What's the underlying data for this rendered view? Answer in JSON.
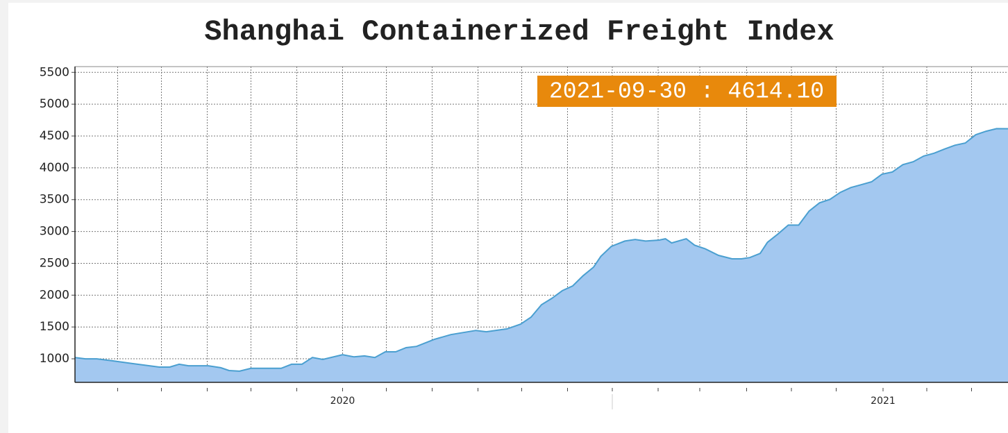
{
  "chart_data": {
    "type": "area",
    "title": "Shanghai Containerized Freight Index",
    "annotation": "2021-09-30 : 4614.10",
    "x": [
      0,
      1,
      2.1,
      3.5,
      5.5,
      8.1,
      9.1,
      10,
      10.9,
      12.8,
      14,
      14.8,
      15.8,
      16.9,
      19.8,
      20.8,
      21.8,
      22.8,
      23.8,
      25.7,
      26.8,
      27.8,
      28.8,
      29.8,
      30.8,
      31.8,
      32.8,
      34.5,
      36.1,
      38.5,
      39.5,
      41.5,
      42.8,
      43.8,
      44.8,
      45.8,
      46.8,
      47.8,
      48.8,
      49.8,
      50.5,
      51.5,
      52.8,
      53.8,
      54.8,
      56.1,
      56.7,
      57.3,
      58.7,
      59.5,
      60.5,
      61.8,
      63.1,
      64,
      64.8,
      65.8,
      66.5,
      67.5,
      68.5,
      69.5,
      70.5,
      71.5,
      72.5,
      73.5,
      74.5,
      75.5,
      76.5,
      77.5,
      78.5,
      79.5,
      80.5,
      81.5,
      82.5,
      83.5,
      84.5,
      85.5,
      86.5,
      87.5,
      88.5,
      89.6
    ],
    "values": [
      1020,
      1000,
      1000,
      970,
      925,
      870,
      870,
      915,
      890,
      890,
      860,
      815,
      805,
      850,
      850,
      915,
      915,
      1020,
      990,
      1065,
      1030,
      1045,
      1020,
      1110,
      1110,
      1175,
      1195,
      1305,
      1380,
      1445,
      1425,
      1470,
      1545,
      1655,
      1850,
      1950,
      2070,
      2145,
      2305,
      2440,
      2610,
      2765,
      2850,
      2875,
      2850,
      2865,
      2885,
      2820,
      2885,
      2785,
      2730,
      2625,
      2570,
      2570,
      2590,
      2655,
      2830,
      2960,
      3100,
      3100,
      3320,
      3450,
      3505,
      3615,
      3690,
      3735,
      3780,
      3900,
      3935,
      4050,
      4095,
      4185,
      4230,
      4295,
      4355,
      4390,
      4520,
      4575,
      4615,
      4614.1
    ],
    "color": "#a3c8f0",
    "line_color": "#4a9fd0",
    "xlim": [
      0,
      89.6
    ],
    "xticks": [
      {
        "value": 25.7,
        "label": "2020"
      },
      {
        "value": 77.6,
        "label": "2021"
      }
    ],
    "xminor_ticks": [
      4.1,
      8.3,
      12.7,
      16.9,
      21.3,
      29.9,
      34.3,
      38.7,
      42.9,
      47.3,
      51.6,
      56,
      60,
      64.5,
      68.8,
      73.1,
      81.8,
      86.1
    ],
    "ylim": [
      630,
      5590
    ],
    "yticks": [
      1000,
      1500,
      2000,
      2500,
      3000,
      3500,
      4000,
      4500,
      5000,
      5500
    ],
    "grid": true
  }
}
